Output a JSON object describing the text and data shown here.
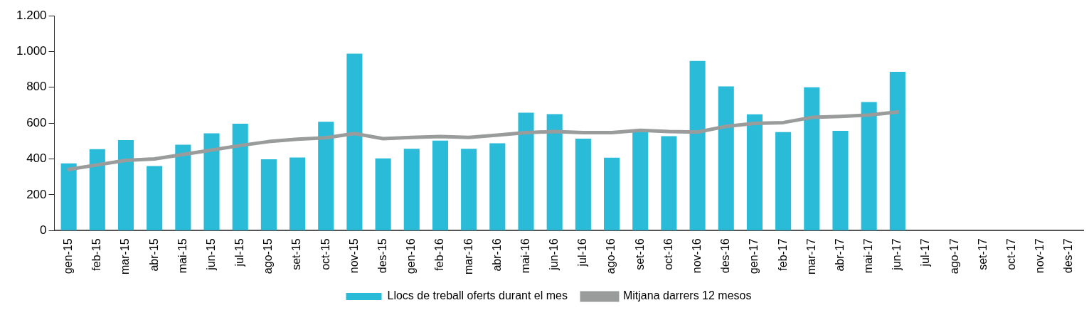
{
  "chart_data": {
    "type": "bar",
    "categories": [
      "gen-15",
      "feb-15",
      "mar-15",
      "abr-15",
      "mai-15",
      "jun-15",
      "jul-15",
      "ago-15",
      "set-15",
      "oct-15",
      "nov-15",
      "des-15",
      "gen-16",
      "feb-16",
      "mar-16",
      "abr-16",
      "mai-16",
      "jun-16",
      "jul-16",
      "ago-16",
      "set-16",
      "oct-16",
      "nov-16",
      "des-16",
      "gen-17",
      "feb-17",
      "mar-17",
      "abr-17",
      "mai-17",
      "jun-17",
      "jul-17",
      "ago-17",
      "set-17",
      "oct-17",
      "nov-17",
      "des-17"
    ],
    "series": [
      {
        "name": "Llocs de treball oferts durant el mes",
        "color": "#29bbd8",
        "values": [
          375,
          455,
          505,
          360,
          480,
          543,
          597,
          398,
          408,
          608,
          988,
          403,
          457,
          502,
          457,
          488,
          658,
          650,
          513,
          407,
          550,
          527,
          947,
          805,
          649,
          550,
          800,
          557,
          718,
          886,
          null,
          null,
          null,
          null,
          null,
          null
        ]
      },
      {
        "name": "Mitjana darrers 12 mesos",
        "type": "line",
        "color": "#9a9c9c",
        "values": [
          342,
          367,
          392,
          400,
          425,
          450,
          475,
          497,
          510,
          518,
          542,
          513,
          520,
          525,
          520,
          533,
          547,
          553,
          547,
          547,
          560,
          553,
          550,
          582,
          599,
          603,
          632,
          637,
          645,
          662,
          null,
          null,
          null,
          null,
          null,
          null
        ]
      }
    ],
    "ylim": [
      0,
      1200
    ],
    "yticks": [
      {
        "value": 0,
        "label": "0"
      },
      {
        "value": 200,
        "label": "200"
      },
      {
        "value": 400,
        "label": "400"
      },
      {
        "value": 600,
        "label": "600"
      },
      {
        "value": 800,
        "label": "800"
      },
      {
        "value": 1000,
        "label": "1.000"
      },
      {
        "value": 1200,
        "label": "1.200"
      }
    ],
    "grid": false,
    "legend": "bottom",
    "marker": "none",
    "line_style": "solid"
  }
}
